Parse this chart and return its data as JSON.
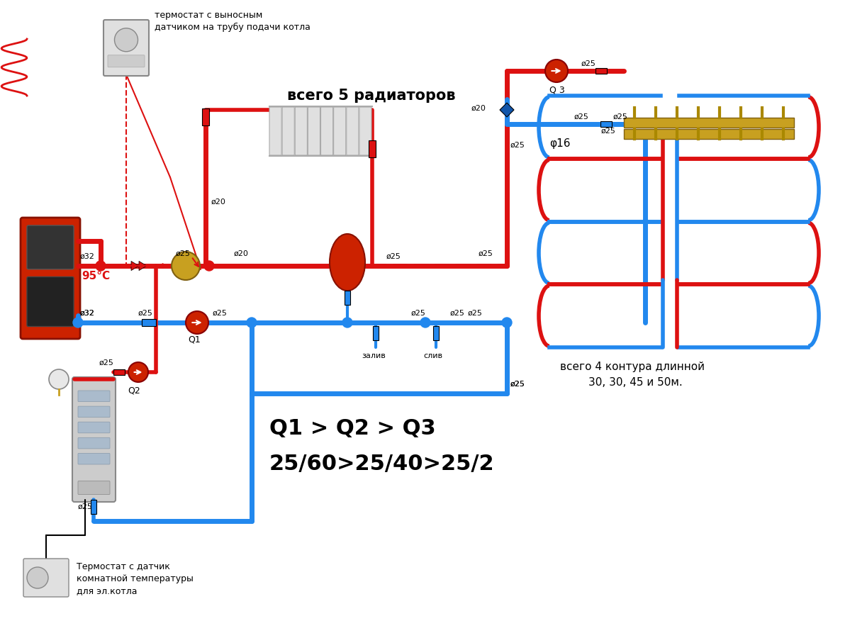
{
  "red": "#dd1111",
  "blue": "#2288ee",
  "dark_blue": "#1155bb",
  "white": "#ffffff",
  "lw_main": 5,
  "lw_med": 4,
  "lw_small": 3,
  "title1": "термостат с выносным",
  "title2": "датчиком на трубу подачи котла",
  "label_5rad": "всего 5 радиаторов",
  "label_4cont1": "всего 4 контура длинной",
  "label_4cont2": "30, 30, 45 и 50м.",
  "label_q1": "Q1 > Q2 > Q3",
  "label_q2": "25/60>25/40>25/2",
  "label_95": "95°C",
  "label_thermo_top1": "термостат с выносным",
  "label_thermo_top2": "датчиком на трубу подачи котла",
  "label_thermo_bot1": "Термостат с датчик",
  "label_thermo_bot2": "комнатной температуры",
  "label_thermo_bot3": "для эл.котла",
  "label_zaliv": "залив",
  "label_sliv": "слив",
  "label_phi16": "φ16",
  "label_Q1": "Q1",
  "label_Q2": "Q2",
  "label_Q3": "Q 3"
}
